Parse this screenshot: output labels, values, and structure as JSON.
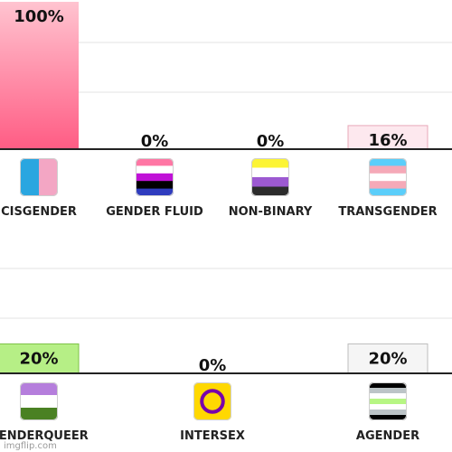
{
  "chart_data": [
    {
      "type": "bar",
      "ylim": [
        0,
        100
      ],
      "grid": true,
      "categories": [
        "CISGENDER",
        "GENDER FLUID",
        "NON-BINARY",
        "TRANSGENDER"
      ],
      "values": [
        100,
        0,
        0,
        16
      ],
      "value_labels": [
        "100%",
        "0%",
        "0%",
        "16%"
      ],
      "bar_colors": [
        "#ff5f86",
        "#ffffff",
        "#ffffff",
        "#fde8ee"
      ],
      "flag_icons": [
        "cisgender-flag-icon",
        "genderfluid-flag-icon",
        "nonbinary-flag-icon",
        "transgender-flag-icon"
      ]
    },
    {
      "type": "bar",
      "ylim": [
        0,
        100
      ],
      "grid": true,
      "categories": [
        "GENDERQUEER",
        "INTERSEX",
        "AGENDER"
      ],
      "values": [
        20,
        0,
        20
      ],
      "value_labels": [
        "20%",
        "0%",
        "20%"
      ],
      "bar_colors": [
        "#b6ef86",
        "#ffffff",
        "#f5f5f5"
      ],
      "flag_icons": [
        "genderqueer-flag-icon",
        "intersex-flag-icon",
        "agender-flag-icon"
      ]
    }
  ],
  "watermark": "imgflip.com"
}
